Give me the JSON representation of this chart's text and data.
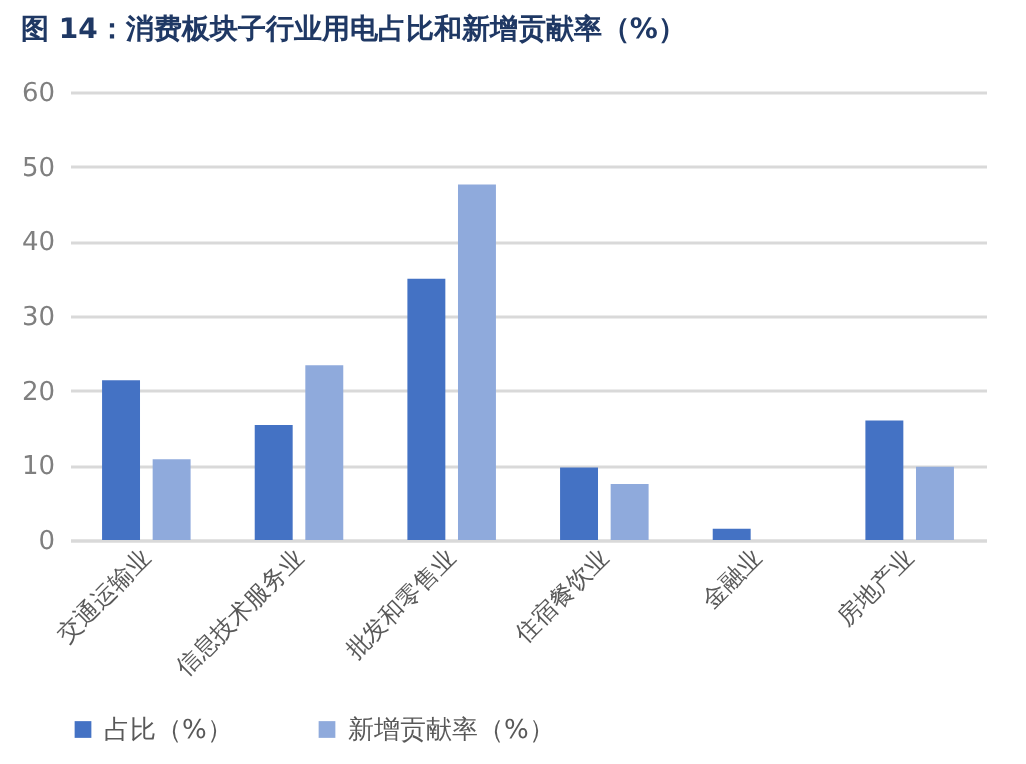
{
  "chart_data": {
    "type": "bar",
    "title": "图 14：消费板块子行业用电占比和新增贡献率（%）",
    "categories": [
      "交通运输业",
      "信息技术服务业",
      "批发和零售业",
      "住宿餐饮业",
      "金融业",
      "房地产业"
    ],
    "series": [
      {
        "name": "占比（%）",
        "color": "#4472c4",
        "values": [
          21.4,
          15.4,
          35.0,
          9.7,
          1.5,
          16.0
        ]
      },
      {
        "name": "新增贡献率（%）",
        "color": "#8faadc",
        "values": [
          10.8,
          23.4,
          47.6,
          7.5,
          0,
          9.8
        ]
      }
    ],
    "ylim": [
      0,
      60
    ],
    "yticks": [
      0,
      10,
      20,
      30,
      40,
      50,
      60
    ],
    "grid": "y",
    "legend": "bottom"
  }
}
